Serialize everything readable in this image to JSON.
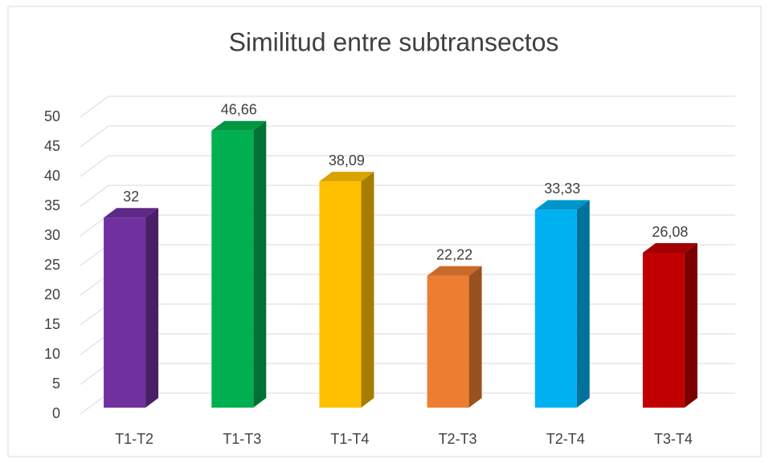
{
  "chart_data": {
    "type": "bar3d",
    "title": "Similitud entre subtransectos",
    "categories": [
      "T1-T2",
      "T1-T3",
      "T1-T4",
      "T2-T3",
      "T2-T4",
      "T3-T4"
    ],
    "values": [
      32,
      46.66,
      38.09,
      22.22,
      33.33,
      26.08
    ],
    "value_labels": [
      "32",
      "46,66",
      "38,09",
      "22,22",
      "33,33",
      "26,08"
    ],
    "colors": [
      "#7030a0",
      "#00b050",
      "#ffc000",
      "#ed7d31",
      "#00b0f0",
      "#c00000"
    ],
    "ylim": [
      0,
      50
    ],
    "yticks": [
      0,
      5,
      10,
      15,
      20,
      25,
      30,
      35,
      40,
      45,
      50
    ],
    "grid": true
  }
}
